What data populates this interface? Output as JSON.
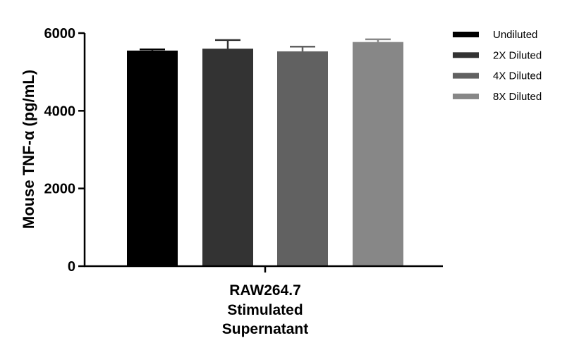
{
  "chart_data": {
    "type": "bar",
    "ylabel": "Mouse TNF-α (pg/mL)",
    "xlabel": "",
    "ylim": [
      0,
      6000
    ],
    "yticks": [
      0,
      2000,
      4000,
      6000
    ],
    "category_lines": [
      "RAW264.7",
      "Stimulated",
      "Supernatant"
    ],
    "legend_position": "right",
    "grid": false,
    "series": [
      {
        "name": "Undiluted",
        "value": 5550,
        "error": 30,
        "color": "#000000"
      },
      {
        "name": "2X Diluted",
        "value": 5600,
        "error": 220,
        "color": "#333333"
      },
      {
        "name": "4X Diluted",
        "value": 5530,
        "error": 120,
        "color": "#616161"
      },
      {
        "name": "8X Diluted",
        "value": 5770,
        "error": 70,
        "color": "#878787"
      }
    ]
  }
}
